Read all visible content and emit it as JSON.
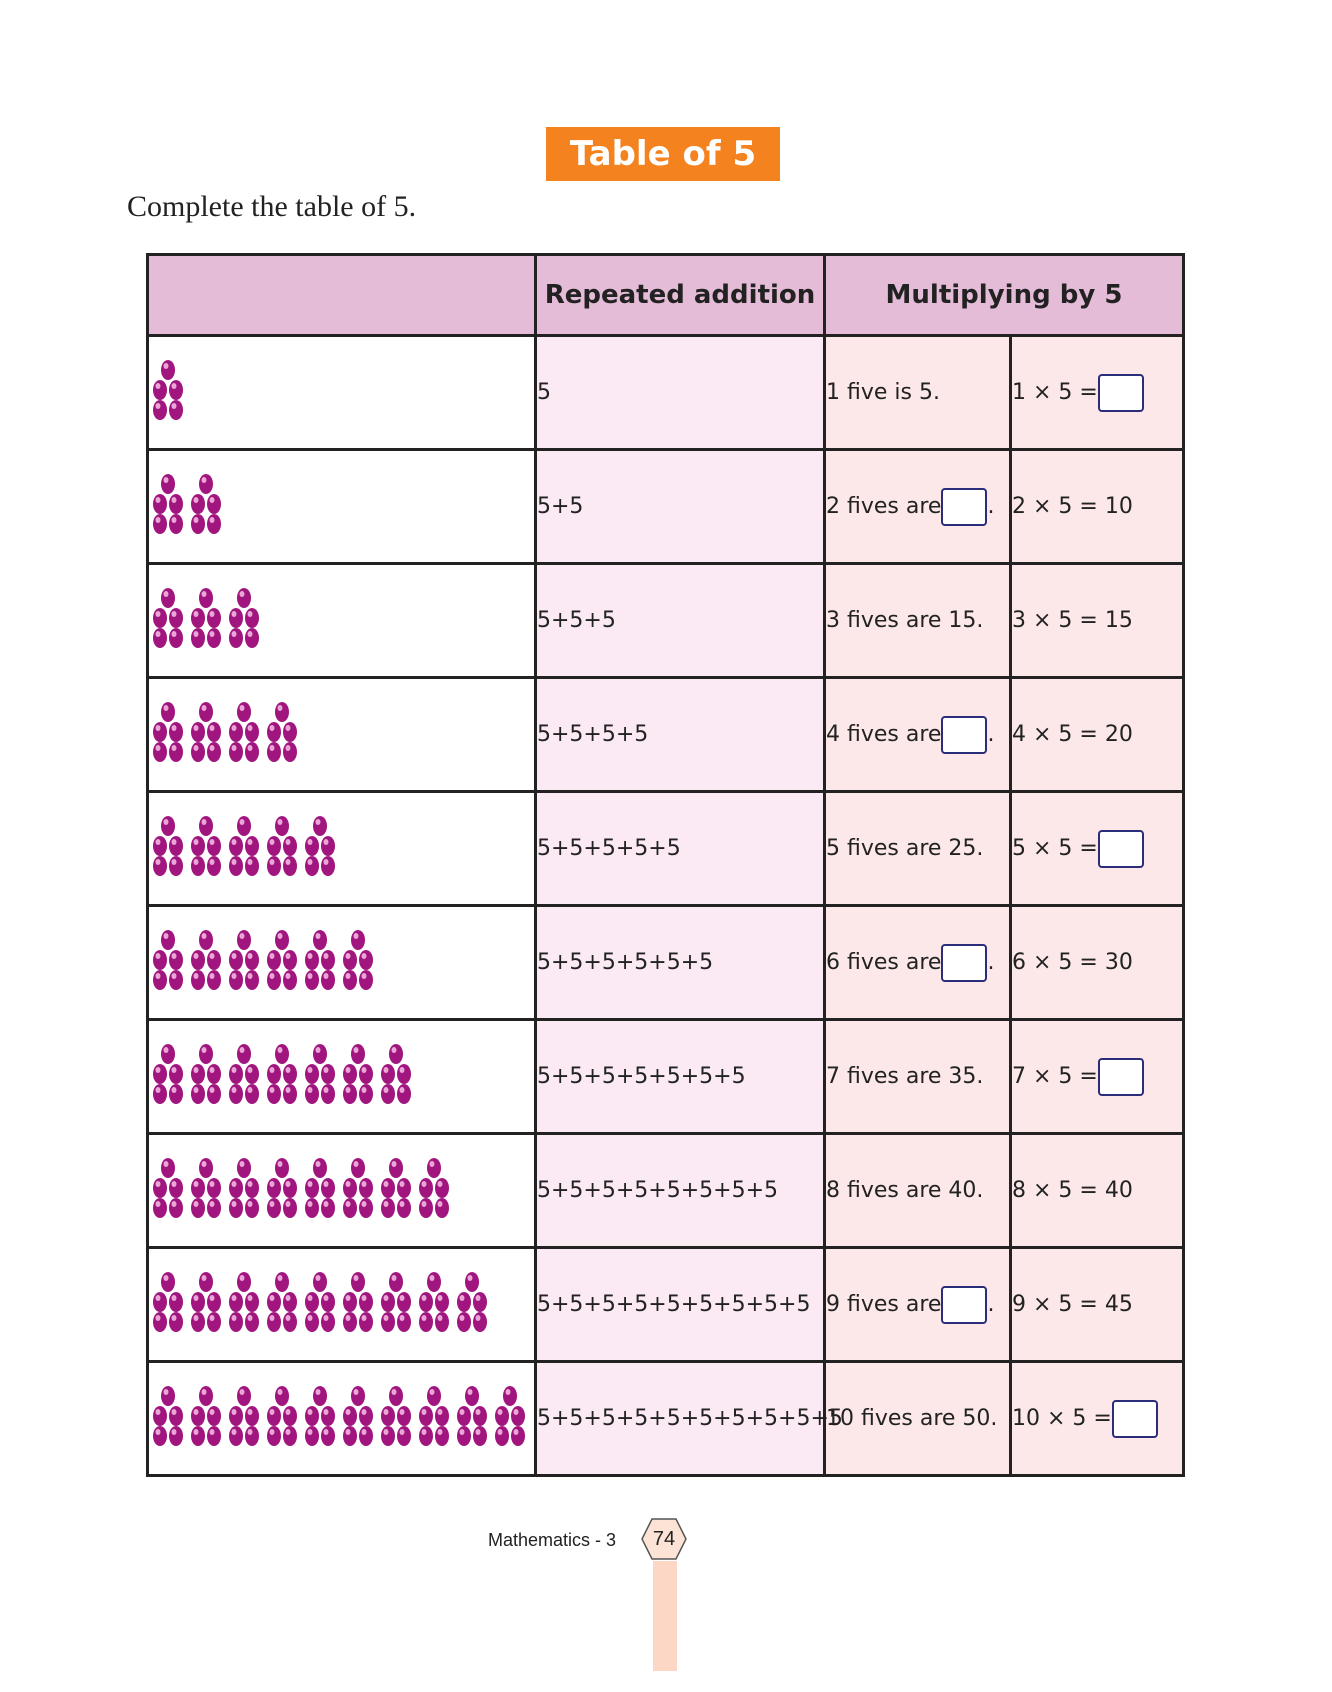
{
  "title": "Table of 5",
  "instruction": "Complete the table of 5.",
  "table": {
    "headers": [
      "",
      "Repeated addition",
      "Multiplying by 5"
    ],
    "rows": [
      {
        "groups": 1,
        "addition": "5",
        "words_pre": "1 five is 5.",
        "words_blank": false,
        "words_post": "",
        "eq_pre": "1 × 5 =",
        "eq_blank": true,
        "eq_post": ""
      },
      {
        "groups": 2,
        "addition": "5+5",
        "words_pre": "2 fives are",
        "words_blank": true,
        "words_post": ".",
        "eq_pre": "2 × 5 = 10",
        "eq_blank": false,
        "eq_post": ""
      },
      {
        "groups": 3,
        "addition": "5+5+5",
        "words_pre": "3 fives are 15.",
        "words_blank": false,
        "words_post": "",
        "eq_pre": "3 × 5 = 15",
        "eq_blank": false,
        "eq_post": ""
      },
      {
        "groups": 4,
        "addition": "5+5+5+5",
        "words_pre": "4 fives are",
        "words_blank": true,
        "words_post": ".",
        "eq_pre": "4 × 5 = 20",
        "eq_blank": false,
        "eq_post": ""
      },
      {
        "groups": 5,
        "addition": "5+5+5+5+5",
        "words_pre": "5 fives are 25.",
        "words_blank": false,
        "words_post": "",
        "eq_pre": "5 × 5 =",
        "eq_blank": true,
        "eq_post": ""
      },
      {
        "groups": 6,
        "addition": "5+5+5+5+5+5",
        "words_pre": "6 fives are",
        "words_blank": true,
        "words_post": ".",
        "eq_pre": "6 × 5 = 30",
        "eq_blank": false,
        "eq_post": ""
      },
      {
        "groups": 7,
        "addition": "5+5+5+5+5+5+5",
        "words_pre": "7 fives are 35.",
        "words_blank": false,
        "words_post": "",
        "eq_pre": "7 × 5 =",
        "eq_blank": true,
        "eq_post": ""
      },
      {
        "groups": 8,
        "addition": "5+5+5+5+5+5+5+5",
        "words_pre": "8 fives are 40.",
        "words_blank": false,
        "words_post": "",
        "eq_pre": "8 × 5 = 40",
        "eq_blank": false,
        "eq_post": ""
      },
      {
        "groups": 9,
        "addition": "5+5+5+5+5+5+5+5+5",
        "words_pre": "9 fives are",
        "words_blank": true,
        "words_post": ".",
        "eq_pre": "9 × 5 = 45",
        "eq_blank": false,
        "eq_post": ""
      },
      {
        "groups": 10,
        "addition": "5+5+5+5+5+5+5+5+5+5",
        "words_pre": "10 fives are 50.",
        "words_blank": false,
        "words_post": "",
        "eq_pre": "10 × 5 =",
        "eq_blank": true,
        "eq_post": ""
      }
    ]
  },
  "footer": {
    "subject": "Mathematics - 3",
    "page": "74"
  },
  "colors": {
    "title_bg": "#f4821f",
    "header_bg": "#e5bcd7",
    "bead": "#a1157f",
    "answer_box_border": "#2b2d7a"
  }
}
